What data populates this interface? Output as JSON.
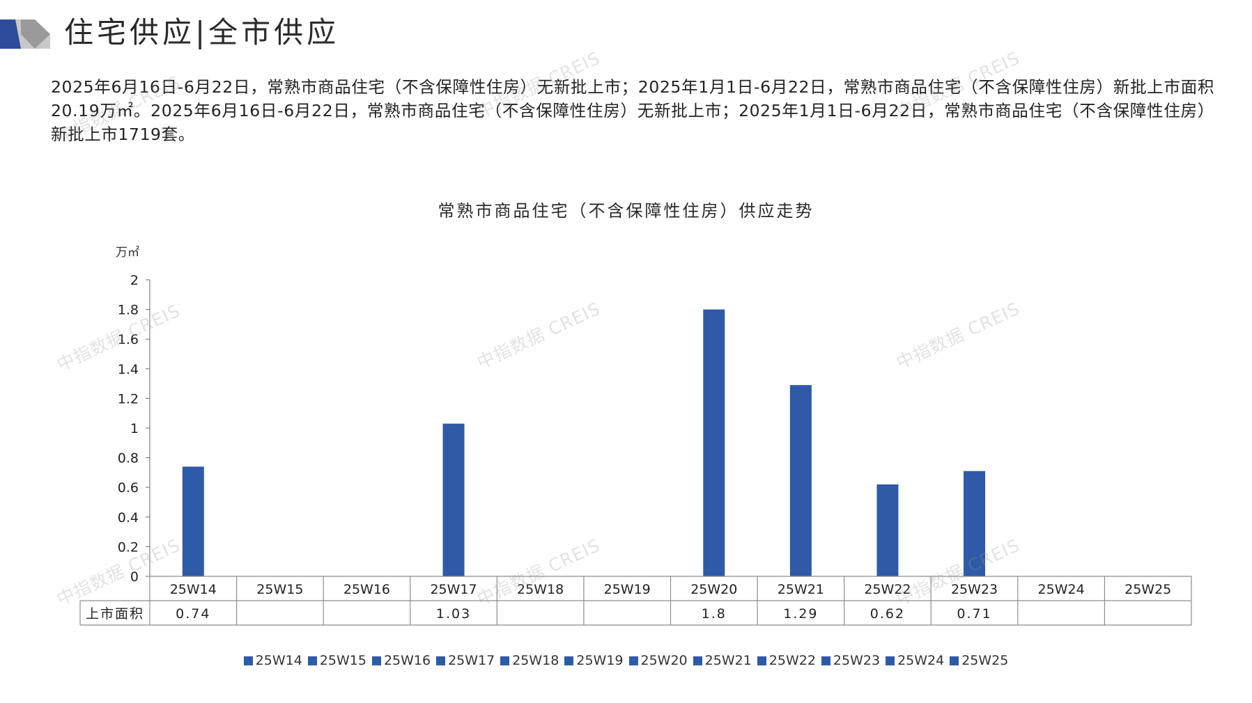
{
  "header": {
    "title": "住宅供应|全市供应"
  },
  "summary": {
    "text": "2025年6月16日-6月22日，常熟市商品住宅（不含保障性住房）无新批上市；2025年1月1日-6月22日，常熟市商品住宅（不含保障性住房）新批上市面积20.19万㎡。2025年6月16日-6月22日，常熟市商品住宅（不含保障性住房）无新批上市；2025年1月1日-6月22日，常熟市商品住宅（不含保障性住房）新批上市1719套。"
  },
  "watermark": {
    "text": "中指数据 CREIS"
  },
  "colors": {
    "bar": "#2e5aa8",
    "logo_dark": "#2e4a9a",
    "logo_gray": "#c8c8c8"
  },
  "chart_data": {
    "type": "bar",
    "title": "常熟市商品住宅（不含保障性住房）供应走势",
    "ylabel": "万㎡",
    "xlabel": "",
    "ylim": [
      0,
      2
    ],
    "yticks": [
      "0",
      "0.2",
      "0.4",
      "0.6",
      "0.8",
      "1",
      "1.2",
      "1.4",
      "1.6",
      "1.8",
      "2"
    ],
    "categories": [
      "25W14",
      "25W15",
      "25W16",
      "25W17",
      "25W18",
      "25W19",
      "25W20",
      "25W21",
      "25W22",
      "25W23",
      "25W24",
      "25W25"
    ],
    "series": [
      {
        "name": "上市面积",
        "values": [
          0.74,
          null,
          null,
          1.03,
          null,
          null,
          1.8,
          1.29,
          0.62,
          0.71,
          null,
          null
        ],
        "labels": [
          "0.74",
          "",
          "",
          "1.03",
          "",
          "",
          "1.8",
          "1.29",
          "0.62",
          "0.71",
          "",
          ""
        ]
      }
    ],
    "legend": {
      "position": "bottom",
      "entries": [
        "25W14",
        "25W15",
        "25W16",
        "25W17",
        "25W18",
        "25W19",
        "25W20",
        "25W21",
        "25W22",
        "25W23",
        "25W24",
        "25W25"
      ]
    },
    "grid": false
  }
}
